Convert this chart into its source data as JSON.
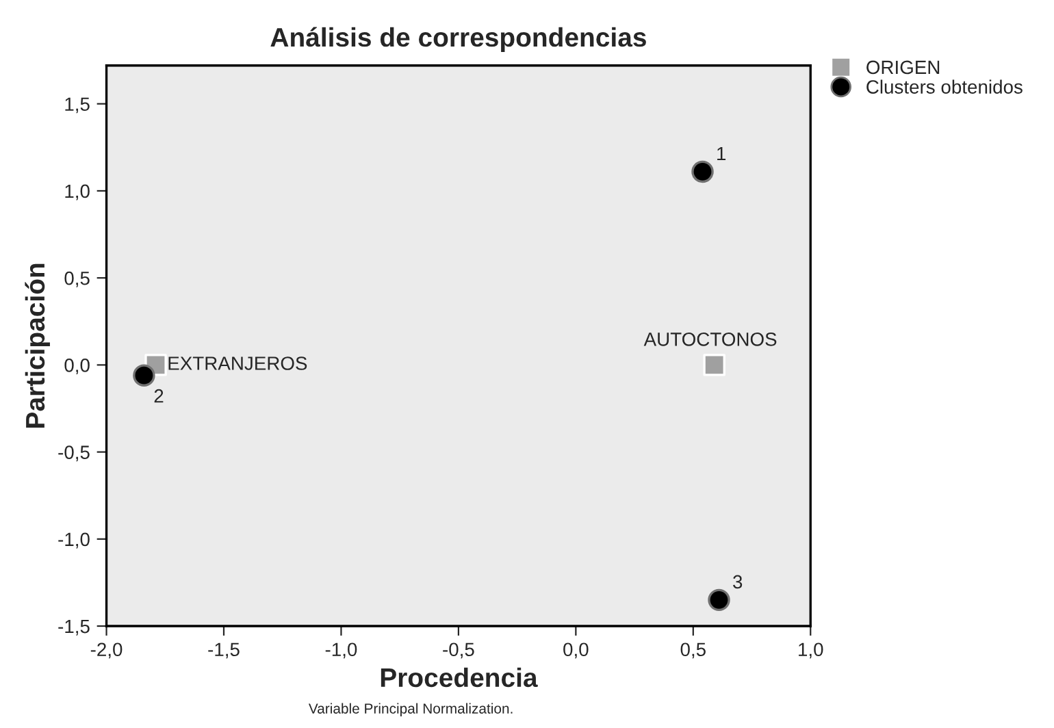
{
  "chart_data": {
    "type": "scatter",
    "title": "Análisis de correspondencias",
    "xlabel": "Procedencia",
    "ylabel": "Participación",
    "annotations": [
      "Variable Principal Normalization.",
      {
        "text": "AUTOCTONOS",
        "x": 0.59,
        "y": 0.0
      },
      {
        "text": "EXTRANJEROS",
        "x": -1.79,
        "y": 0.0
      },
      {
        "text": "1",
        "x": 0.54,
        "y": 1.11
      },
      {
        "text": "2",
        "x": -1.84,
        "y": -0.06
      },
      {
        "text": "3",
        "x": 0.61,
        "y": -1.35
      }
    ],
    "xlim": [
      -2.0,
      1.0
    ],
    "ylim": [
      -1.5,
      1.72
    ],
    "xticks": [
      {
        "value": -2.0,
        "label": "-2,0"
      },
      {
        "value": -1.5,
        "label": "-1,5"
      },
      {
        "value": -1.0,
        "label": "-1,0"
      },
      {
        "value": -0.5,
        "label": "-0,5"
      },
      {
        "value": 0.0,
        "label": "0,0"
      },
      {
        "value": 0.5,
        "label": "0,5"
      },
      {
        "value": 1.0,
        "label": "1,0"
      }
    ],
    "yticks": [
      {
        "value": -1.5,
        "label": "-1,5"
      },
      {
        "value": -1.0,
        "label": "-1,0"
      },
      {
        "value": -0.5,
        "label": "-0,5"
      },
      {
        "value": 0.0,
        "label": "0,0"
      },
      {
        "value": 0.5,
        "label": "0,5"
      },
      {
        "value": 1.0,
        "label": "1,0"
      },
      {
        "value": 1.5,
        "label": "1,5"
      }
    ],
    "grid": false,
    "legend": "top right",
    "series": [
      {
        "name": "ORIGEN",
        "color": "#a0a0a0",
        "marker": "square",
        "x": [
          0.59,
          -1.79
        ],
        "values": [
          0.0,
          0.0
        ]
      },
      {
        "name": "Clusters obtenidos",
        "color": "#000000",
        "marker": "circle",
        "x": [
          0.54,
          -1.84,
          0.61
        ],
        "values": [
          1.11,
          -0.06,
          -1.35
        ]
      }
    ]
  }
}
